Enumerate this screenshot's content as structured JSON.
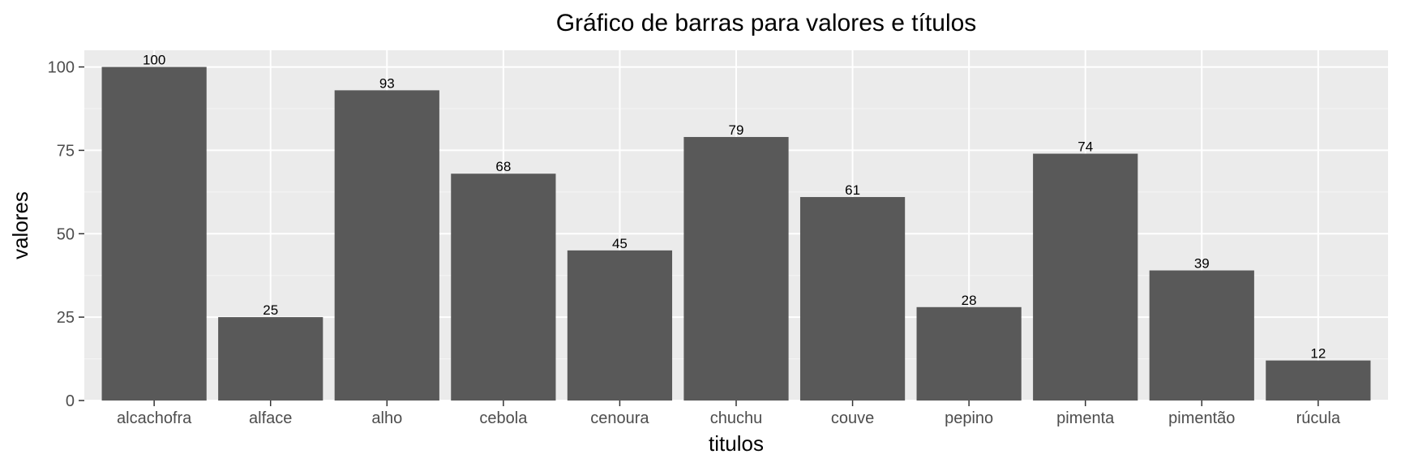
{
  "chart_data": {
    "type": "bar",
    "title": "Gráfico de barras para valores e títulos",
    "xlabel": "titulos",
    "ylabel": "valores",
    "categories": [
      "alcachofra",
      "alface",
      "alho",
      "cebola",
      "cenoura",
      "chuchu",
      "couve",
      "pepino",
      "pimenta",
      "pimentão",
      "rúcula"
    ],
    "values": [
      100,
      25,
      93,
      68,
      45,
      79,
      61,
      28,
      74,
      39,
      12
    ],
    "data_labels": [
      "100",
      "25",
      "93",
      "68",
      "45",
      "79",
      "61",
      "28",
      "74",
      "39",
      "12"
    ],
    "ylim": [
      0,
      105
    ],
    "yticks": [
      0,
      25,
      50,
      75,
      100
    ],
    "ytick_labels": [
      "0",
      "25",
      "50",
      "75",
      "100"
    ],
    "grid": true,
    "legend": "none",
    "colors": {
      "bar": "#595959",
      "panel_background": "#ebebeb",
      "grid_major": "#ffffff",
      "grid_minor": "#f5f5f5",
      "tick_text": "#4d4d4d",
      "tick_mark": "#333333"
    }
  }
}
